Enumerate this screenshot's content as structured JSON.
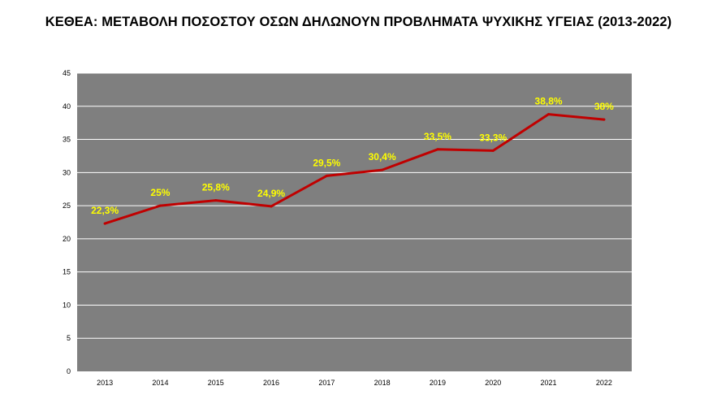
{
  "chart_data": {
    "type": "line",
    "title": "ΚΕΘΕΑ: ΜΕΤΑΒΟΛΗ ΠΟΣΟΣΤΟΥ ΟΣΩΝ ΔΗΛΩΝΟΥΝ ΠΡΟΒΛΗΜΑΤΑ ΨΥΧΙΚΗΣ ΥΓΕΙΑΣ (2013-2022)",
    "xlabel": "",
    "ylabel": "",
    "categories": [
      "2013",
      "2014",
      "2015",
      "2016",
      "2017",
      "2018",
      "2019",
      "2020",
      "2021",
      "2022"
    ],
    "series": [
      {
        "values": [
          22.3,
          25,
          25.8,
          24.9,
          29.5,
          30.4,
          33.5,
          33.3,
          38.8,
          38
        ],
        "data_labels": [
          "22,3%",
          "25%",
          "25,8%",
          "24,9%",
          "29,5%",
          "30,4%",
          "33,5%",
          "33,3%",
          "38,8%",
          "38%"
        ]
      }
    ],
    "ylim": [
      0,
      45
    ],
    "yticks": [
      "0",
      "5",
      "10",
      "15",
      "20",
      "25",
      "30",
      "35",
      "40",
      "45"
    ],
    "grid": true,
    "legend": "none",
    "colors": {
      "plot_background": "#7f7f7f",
      "gridline": "#ffffff",
      "line": "#c00000",
      "data_label": "#ffff00"
    }
  }
}
